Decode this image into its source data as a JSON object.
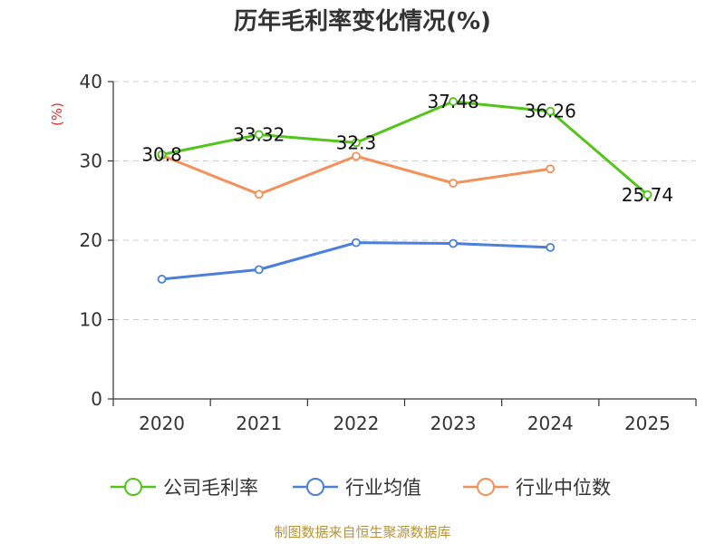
{
  "chart_data": {
    "type": "line",
    "title": "历年毛利率变化情况(%)",
    "ylabel": "(%)",
    "xlabel": "",
    "categories": [
      "2020",
      "2021",
      "2022",
      "2023",
      "2024",
      "2025"
    ],
    "ylim": [
      0,
      40
    ],
    "yticks": [
      0,
      10,
      20,
      30,
      40
    ],
    "grid": true,
    "legend_position": "bottom",
    "series": [
      {
        "name": "公司毛利率",
        "color": "#52c41a",
        "values": [
          30.8,
          33.32,
          32.3,
          37.48,
          36.26,
          25.74
        ],
        "labels": [
          "30.8",
          "33.32",
          "32.3",
          "37.48",
          "36.26",
          "25.74"
        ]
      },
      {
        "name": "行业均值",
        "color": "#4a7fdb",
        "values": [
          15.1,
          16.3,
          19.7,
          19.6,
          19.1,
          null
        ]
      },
      {
        "name": "行业中位数",
        "color": "#f4905a",
        "values": [
          30.7,
          25.8,
          30.6,
          27.2,
          29.0,
          null
        ]
      }
    ]
  },
  "source": "制图数据来自恒生聚源数据库"
}
